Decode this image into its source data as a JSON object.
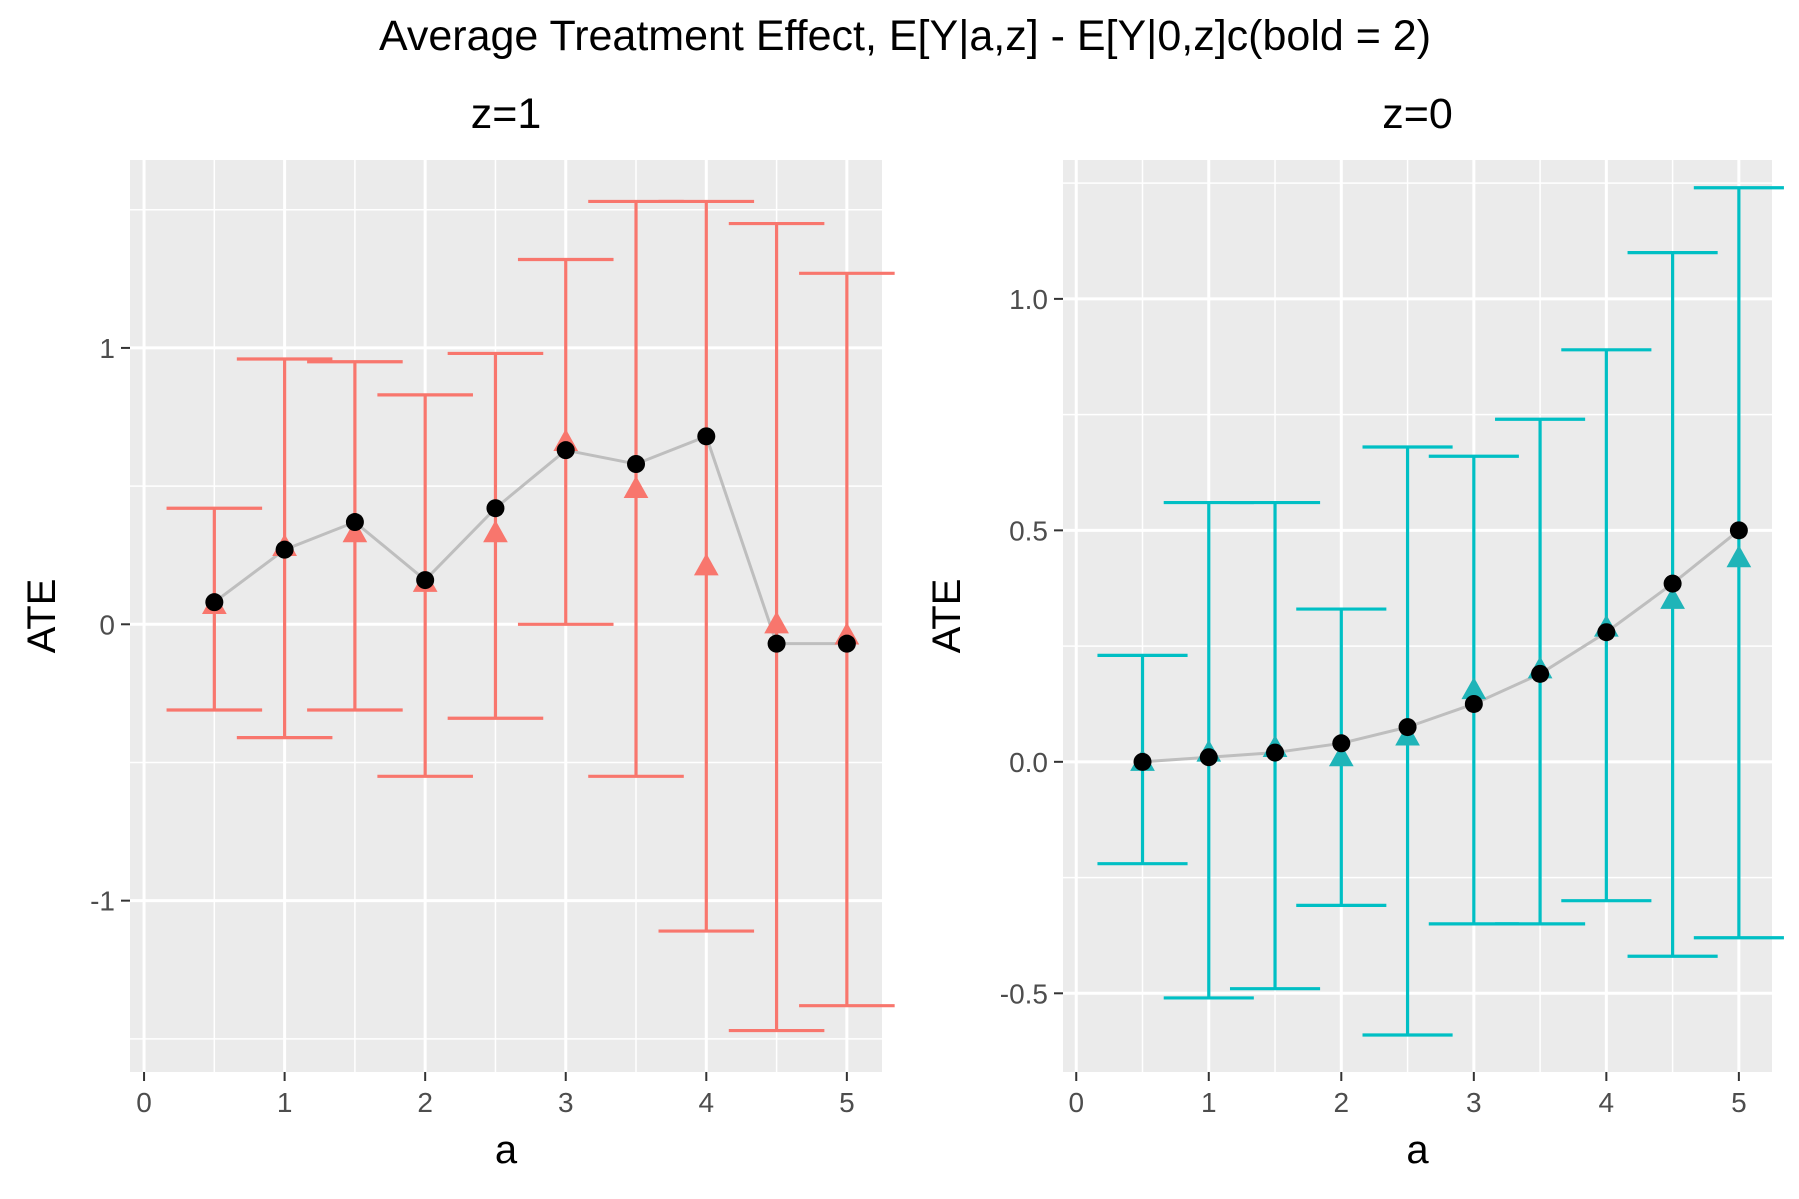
{
  "figure_title": "Average Treatment Effect,  E[Y|a,z] - E[Y|0,z]c(bold = 2)",
  "chart_data": [
    {
      "type": "scatter",
      "panel_title": "z=1",
      "xlabel": "a",
      "ylabel": "ATE",
      "xlim": [
        -0.1,
        5.25
      ],
      "ylim": [
        -1.62,
        1.68
      ],
      "x_ticks": [
        0,
        1,
        2,
        3,
        4,
        5
      ],
      "x_tick_labels": [
        "0",
        "1",
        "2",
        "3",
        "4",
        "5"
      ],
      "y_ticks": [
        -1,
        0,
        1
      ],
      "y_tick_labels": [
        "-1",
        "0",
        "1"
      ],
      "errorbar_color": "#F8766D",
      "background": "#EBEBEB",
      "grid": true,
      "x": [
        0.5,
        1,
        1.5,
        2,
        2.5,
        3,
        3.5,
        4,
        4.5,
        5
      ],
      "series": [
        {
          "marker": "circle",
          "color": "#000000",
          "connected": true,
          "line_color": "#BEBEBE",
          "values": [
            0.08,
            0.27,
            0.37,
            0.16,
            0.42,
            0.63,
            0.58,
            0.68,
            -0.07,
            -0.07
          ]
        },
        {
          "marker": "triangle",
          "color": "#F8766D",
          "connected": false,
          "values": [
            0.07,
            0.28,
            0.33,
            0.15,
            0.33,
            0.66,
            0.49,
            0.21,
            0.0,
            -0.04
          ]
        }
      ],
      "error_lower": [
        -0.31,
        -0.41,
        -0.31,
        -0.55,
        -0.34,
        0.0,
        -0.55,
        -1.11,
        -1.47,
        -1.38
      ],
      "error_upper": [
        0.42,
        0.96,
        0.95,
        0.83,
        0.98,
        1.32,
        1.53,
        1.53,
        1.45,
        1.27
      ]
    },
    {
      "type": "scatter",
      "panel_title": "z=0",
      "xlabel": "a",
      "ylabel": "ATE",
      "xlim": [
        -0.1,
        5.25
      ],
      "ylim": [
        -0.67,
        1.3
      ],
      "x_ticks": [
        0,
        1,
        2,
        3,
        4,
        5
      ],
      "x_tick_labels": [
        "0",
        "1",
        "2",
        "3",
        "4",
        "5"
      ],
      "y_ticks": [
        -0.5,
        0.0,
        0.5,
        1.0
      ],
      "y_tick_labels": [
        "-0.5",
        "0.0",
        "0.5",
        "1.0"
      ],
      "errorbar_color": "#00BFC4",
      "background": "#EBEBEB",
      "grid": true,
      "x": [
        0.5,
        1,
        1.5,
        2,
        2.5,
        3,
        3.5,
        4,
        4.5,
        5
      ],
      "series": [
        {
          "marker": "circle",
          "color": "#000000",
          "connected": true,
          "line_color": "#BEBEBE",
          "values": [
            0.0,
            0.01,
            0.02,
            0.04,
            0.075,
            0.125,
            0.19,
            0.28,
            0.385,
            0.5
          ]
        },
        {
          "marker": "triangle",
          "color": "#1FB4B8",
          "connected": false,
          "values": [
            0.0,
            0.02,
            0.03,
            0.01,
            0.055,
            0.155,
            0.2,
            0.29,
            0.35,
            0.44
          ]
        }
      ],
      "error_lower": [
        -0.22,
        -0.51,
        -0.49,
        -0.31,
        -0.59,
        -0.35,
        -0.35,
        -0.3,
        -0.42,
        -0.38
      ],
      "error_upper": [
        0.23,
        0.56,
        0.56,
        0.33,
        0.68,
        0.66,
        0.74,
        0.89,
        1.1,
        1.24
      ]
    }
  ]
}
